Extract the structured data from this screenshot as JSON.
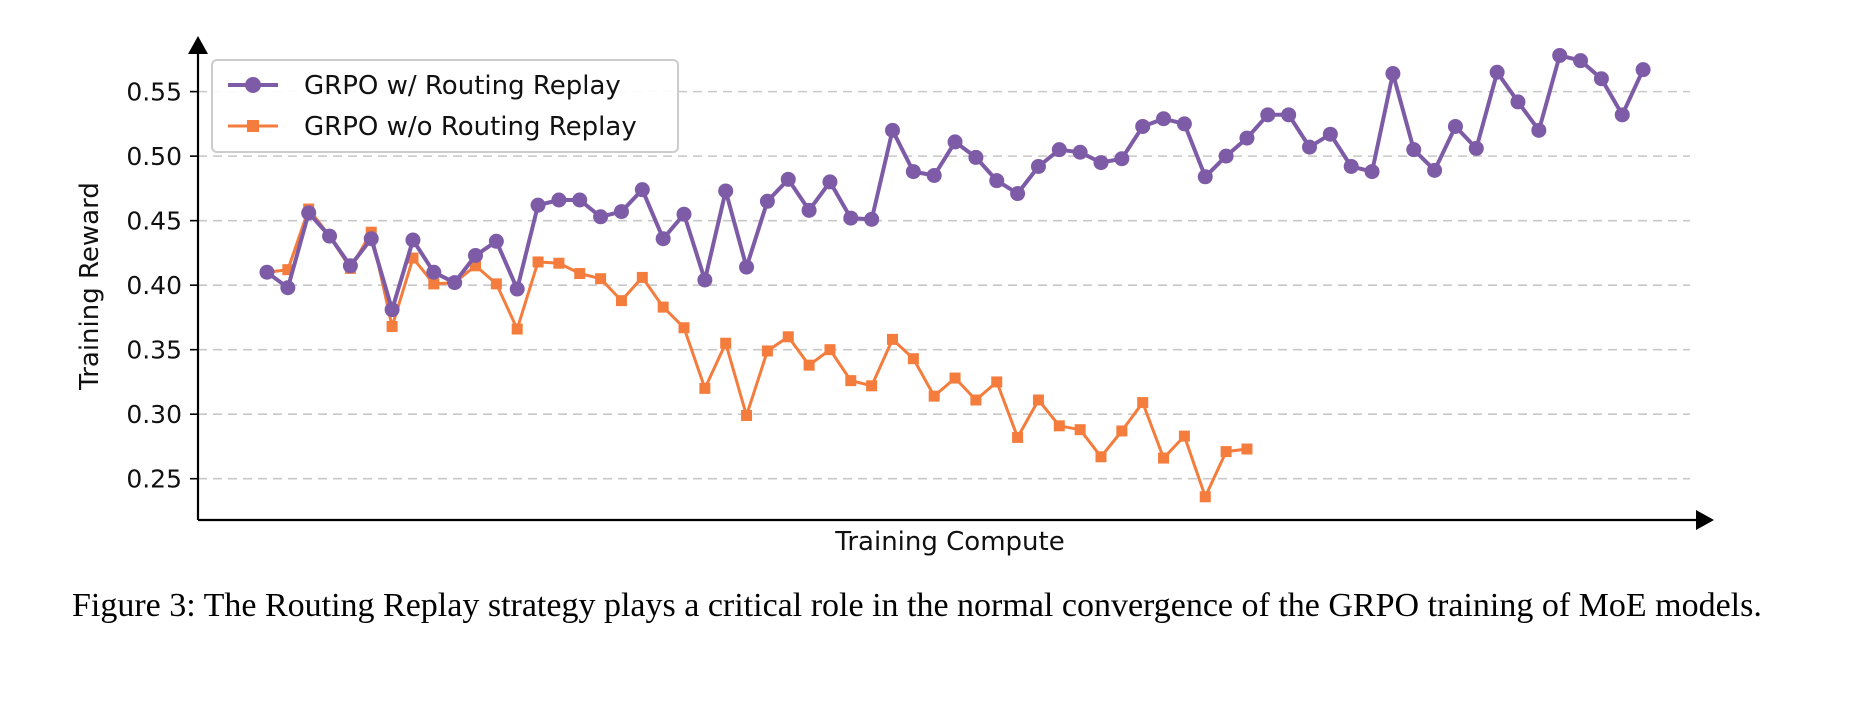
{
  "chart_data": {
    "type": "line",
    "title": "",
    "xlabel": "Training Compute",
    "ylabel": "Training Reward",
    "ylim": [
      0.218,
      0.59
    ],
    "yticks": [
      "0.25",
      "0.30",
      "0.35",
      "0.40",
      "0.45",
      "0.50",
      "0.55"
    ],
    "grid": "horizontal dashed",
    "legend_position": "top-left",
    "series": [
      {
        "name": "GRPO w/ Routing Replay",
        "color": "#7d5ba6",
        "marker": "circle",
        "values": [
          0.41,
          0.398,
          0.456,
          0.438,
          0.415,
          0.436,
          0.381,
          0.435,
          0.41,
          0.402,
          0.423,
          0.434,
          0.397,
          0.462,
          0.466,
          0.466,
          0.453,
          0.457,
          0.474,
          0.436,
          0.455,
          0.404,
          0.473,
          0.414,
          0.465,
          0.482,
          0.458,
          0.48,
          0.452,
          0.451,
          0.52,
          0.488,
          0.485,
          0.511,
          0.499,
          0.481,
          0.471,
          0.492,
          0.505,
          0.503,
          0.495,
          0.498,
          0.523,
          0.529,
          0.525,
          0.484,
          0.5,
          0.514,
          0.532,
          0.532,
          0.507,
          0.517,
          0.492,
          0.488,
          0.564,
          0.505,
          0.489,
          0.523,
          0.506,
          0.565,
          0.542,
          0.52,
          0.578,
          0.574,
          0.56,
          0.532,
          0.567
        ]
      },
      {
        "name": "GRPO w/o Routing Replay",
        "color": "#f47c3c",
        "marker": "square",
        "values": [
          0.41,
          0.412,
          0.459,
          0.438,
          0.413,
          0.441,
          0.368,
          0.421,
          0.401,
          0.402,
          0.415,
          0.401,
          0.366,
          0.418,
          0.417,
          0.409,
          0.405,
          0.388,
          0.406,
          0.383,
          0.367,
          0.32,
          0.355,
          0.299,
          0.349,
          0.36,
          0.338,
          0.35,
          0.326,
          0.322,
          0.358,
          0.343,
          0.314,
          0.328,
          0.311,
          0.325,
          0.282,
          0.311,
          0.291,
          0.288,
          0.267,
          0.287,
          0.309,
          0.266,
          0.283,
          0.236,
          0.271,
          0.273
        ]
      }
    ]
  },
  "caption": "Figure 3: The Routing Replay strategy plays a critical role in the normal convergence of the GRPO training of MoE models."
}
